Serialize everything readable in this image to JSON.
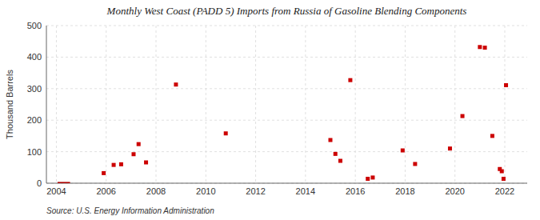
{
  "chart_data": {
    "type": "scatter",
    "title": "Monthly West Coast (PADD 5) Imports from Russia of Gasoline Blending Components",
    "ylabel": "Thousand Barrels",
    "source": "Source: U.S. Energy Information Administration",
    "xlim": [
      2003.6,
      2022.9
    ],
    "xticks": [
      2004,
      2006,
      2008,
      2010,
      2012,
      2014,
      2016,
      2018,
      2020,
      2022
    ],
    "ylim": [
      0,
      500
    ],
    "yticks": [
      0,
      100,
      200,
      300,
      400,
      500
    ],
    "grid": true,
    "series": [
      {
        "type": "scatter",
        "color": "#cc0000",
        "marker": "square",
        "x": [
          2005.9,
          2006.3,
          2006.6,
          2007.1,
          2007.3,
          2007.6,
          2008.8,
          2010.8,
          2015.0,
          2015.2,
          2015.4,
          2015.8,
          2016.5,
          2016.7,
          2017.9,
          2018.4,
          2019.8,
          2020.3,
          2021.0,
          2021.2,
          2021.5,
          2021.8,
          2021.88,
          2021.95,
          2022.05
        ],
        "values": [
          32,
          58,
          60,
          92,
          124,
          66,
          313,
          158,
          137,
          93,
          71,
          327,
          14,
          18,
          104,
          61,
          110,
          213,
          432,
          430,
          150,
          45,
          38,
          14,
          311
        ]
      },
      {
        "type": "bar",
        "color": "#aa0000",
        "bins": [
          2004.05,
          2004.55
        ],
        "values": [
          4
        ]
      }
    ]
  }
}
